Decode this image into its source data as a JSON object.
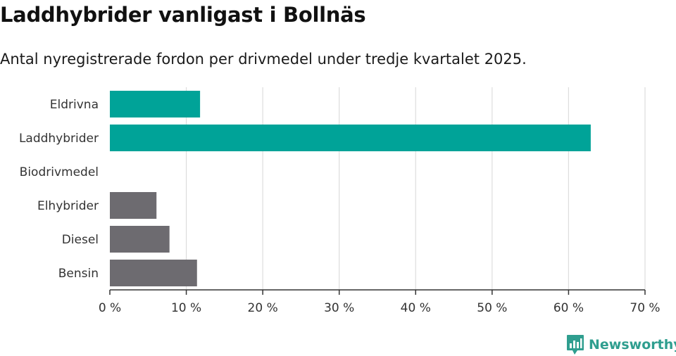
{
  "header": {
    "title": "Laddhybrider vanligast i Bollnäs",
    "subtitle": "Antal nyregistrerade fordon per drivmedel under tredje kvartalet 2025."
  },
  "brand": {
    "name": "Newsworthy",
    "color": "#2f9e8f"
  },
  "colors": {
    "highlight": "#00a398",
    "other": "#6d6b70",
    "grid": "#dddddd",
    "axis": "#333333"
  },
  "chart_data": {
    "type": "bar",
    "orientation": "horizontal",
    "title": "Laddhybrider vanligast i Bollnäs",
    "subtitle": "Antal nyregistrerade fordon per drivmedel under tredje kvartalet 2025.",
    "categories": [
      "Eldrivna",
      "Laddhybrider",
      "Biodrivmedel",
      "Elhybrider",
      "Diesel",
      "Bensin"
    ],
    "values": [
      11.8,
      62.9,
      0,
      6.1,
      7.8,
      11.4
    ],
    "highlight": [
      true,
      true,
      false,
      false,
      false,
      false
    ],
    "xlabel": "",
    "ylabel": "",
    "xlim": [
      0,
      70
    ],
    "xticks": [
      0,
      10,
      20,
      30,
      40,
      50,
      60,
      70
    ],
    "tick_labels": [
      "0 %",
      "10 %",
      "20 %",
      "30 %",
      "40 %",
      "50 %",
      "60 %",
      "70 %"
    ],
    "grid": true,
    "legend": "none"
  }
}
